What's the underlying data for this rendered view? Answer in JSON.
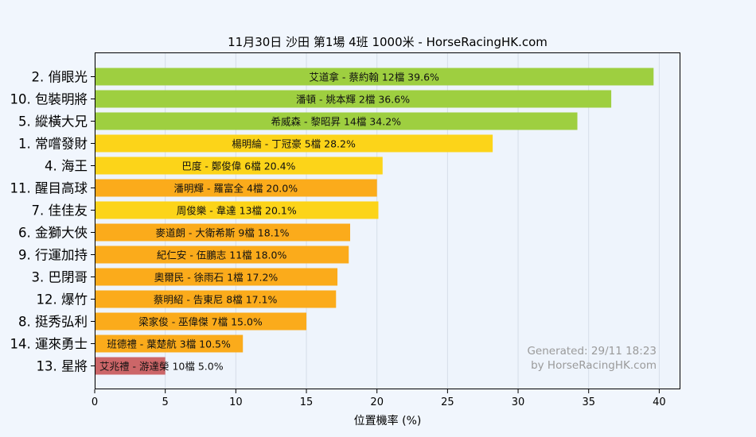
{
  "colors": {
    "background": "#f1f6fd",
    "plot_background": "#eef4fc",
    "green": "#9ecf40",
    "yellow": "#fcd419",
    "orange": "#fbab1b",
    "red": "#cc6668",
    "axis": "#000000",
    "watermark": "#9a9a9a"
  },
  "watermark": {
    "line1": "Generated: 29/11 18:23",
    "line2": "by HorseRacingHK.com"
  },
  "chart_data": {
    "type": "bar",
    "orientation": "horizontal",
    "title": "11月30日  沙田  第1場  4班  1000米 - HorseRacingHK.com",
    "xlabel": "位置機率 (%)",
    "ylabel": "",
    "xlim": [
      0,
      41.5
    ],
    "xticks": [
      0,
      5,
      10,
      15,
      20,
      25,
      30,
      35,
      40
    ],
    "grid": true,
    "categories": [
      "2. 俏眼光",
      "10. 包裝明將",
      "5. 縱橫大兄",
      "1. 常嚐發財",
      "4. 海王",
      "11. 醒目高球",
      "7. 佳佳友",
      "6. 金獅大俠",
      "9. 行運加持",
      "3. 巴閉哥",
      "12. 爆竹",
      "8. 挺秀弘利",
      "14. 運來勇士",
      "13. 星將"
    ],
    "values": [
      39.6,
      36.6,
      34.2,
      28.2,
      20.4,
      20.0,
      20.1,
      18.1,
      18.0,
      17.2,
      17.1,
      15.0,
      10.5,
      5.0
    ],
    "bar_labels": [
      "艾道拿 - 蔡約翰 12檔  39.6%",
      "潘頓 - 姚本輝 2檔  36.6%",
      "希威森 - 黎昭昇 14檔  34.2%",
      "楊明綸 - 丁冠豪 5檔  28.2%",
      "巴度 - 鄭俊偉 6檔  20.4%",
      "潘明輝 - 羅富全 4檔  20.0%",
      "周俊樂 - 韋達 13檔  20.1%",
      "麥道朗 - 大衛希斯 9檔  18.1%",
      "紀仁安 - 伍鵬志 11檔  18.0%",
      "奧爾民 - 徐雨石 1檔  17.2%",
      "蔡明紹 - 告東尼 8檔  17.1%",
      "梁家俊 - 巫偉傑 7檔  15.0%",
      "班德禮 - 葉楚航 3檔  10.5%",
      "艾兆禮 - 游達榮 10檔  5.0%"
    ],
    "bar_colors": [
      "green",
      "green",
      "green",
      "yellow",
      "yellow",
      "orange",
      "yellow",
      "orange",
      "orange",
      "orange",
      "orange",
      "orange",
      "orange",
      "red"
    ]
  }
}
